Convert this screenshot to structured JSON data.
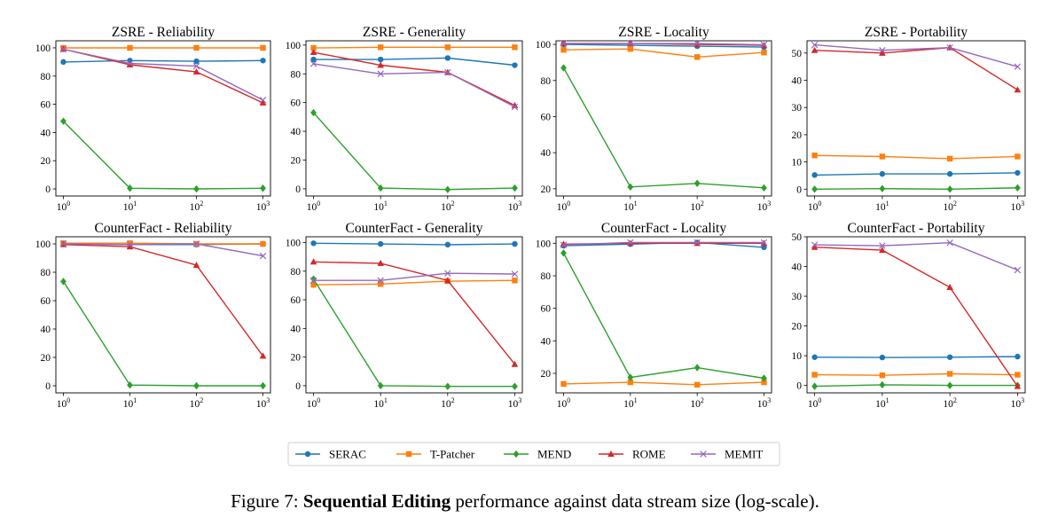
{
  "caption": {
    "prefix": "Figure 7: ",
    "bold": "Sequential Editing",
    "suffix": " performance against data stream size (log-scale)."
  },
  "legend": [
    "SERAC",
    "T-Patcher",
    "MEND",
    "ROME",
    "MEMIT"
  ],
  "series_styles": [
    {
      "name": "SERAC",
      "color": "#1f77b4",
      "marker": "circle"
    },
    {
      "name": "T-Patcher",
      "color": "#ff7f0e",
      "marker": "square"
    },
    {
      "name": "MEND",
      "color": "#2ca02c",
      "marker": "diamond"
    },
    {
      "name": "ROME",
      "color": "#d62728",
      "marker": "triangle"
    },
    {
      "name": "MEMIT",
      "color": "#9467bd",
      "marker": "x"
    }
  ],
  "chart_data": [
    {
      "type": "line",
      "title": "ZSRE - Reliability",
      "xscale": "log",
      "x": [
        1,
        10,
        100,
        1000
      ],
      "x_ticks": [
        "10^0",
        "10^1",
        "10^2",
        "10^3"
      ],
      "y_ticks": [
        0,
        20,
        40,
        60,
        80,
        100
      ],
      "ylim": [
        -5,
        105
      ],
      "series": [
        {
          "name": "SERAC",
          "values": [
            90,
            91,
            90.5,
            91
          ]
        },
        {
          "name": "T-Patcher",
          "values": [
            100,
            100,
            100,
            100
          ]
        },
        {
          "name": "MEND",
          "values": [
            48,
            0.5,
            0,
            0.5
          ]
        },
        {
          "name": "ROME",
          "values": [
            99,
            88,
            83,
            61
          ]
        },
        {
          "name": "MEMIT",
          "values": [
            99,
            89,
            87,
            63
          ]
        }
      ]
    },
    {
      "type": "line",
      "title": "ZSRE - Generality",
      "xscale": "log",
      "x": [
        1,
        10,
        100,
        1000
      ],
      "x_ticks": [
        "10^0",
        "10^1",
        "10^2",
        "10^3"
      ],
      "y_ticks": [
        0,
        20,
        40,
        60,
        80,
        100
      ],
      "ylim": [
        -5,
        103
      ],
      "series": [
        {
          "name": "SERAC",
          "values": [
            90,
            90,
            91,
            86
          ]
        },
        {
          "name": "T-Patcher",
          "values": [
            98,
            98.5,
            98.5,
            98.5
          ]
        },
        {
          "name": "MEND",
          "values": [
            53,
            0.5,
            -0.5,
            0.5
          ]
        },
        {
          "name": "ROME",
          "values": [
            95,
            86,
            81,
            58
          ]
        },
        {
          "name": "MEMIT",
          "values": [
            87,
            80,
            81,
            57
          ]
        }
      ]
    },
    {
      "type": "line",
      "title": "ZSRE - Locality",
      "xscale": "log",
      "x": [
        1,
        10,
        100,
        1000
      ],
      "x_ticks": [
        "10^0",
        "10^1",
        "10^2",
        "10^3"
      ],
      "y_ticks": [
        20,
        40,
        60,
        80,
        100
      ],
      "ylim": [
        16,
        102
      ],
      "series": [
        {
          "name": "SERAC",
          "values": [
            100,
            99.5,
            99,
            98.5
          ]
        },
        {
          "name": "T-Patcher",
          "values": [
            97,
            97.5,
            93,
            95.5
          ]
        },
        {
          "name": "MEND",
          "values": [
            87,
            21,
            23,
            20.5
          ]
        },
        {
          "name": "ROME",
          "values": [
            100.5,
            100.5,
            100,
            99.5
          ]
        },
        {
          "name": "MEMIT",
          "values": [
            100.5,
            100.5,
            100.5,
            99.8
          ]
        }
      ]
    },
    {
      "type": "line",
      "title": "ZSRE - Portability",
      "xscale": "log",
      "x": [
        1,
        10,
        100,
        1000
      ],
      "x_ticks": [
        "10^0",
        "10^1",
        "10^2",
        "10^3"
      ],
      "y_ticks": [
        0,
        10,
        20,
        30,
        40,
        50
      ],
      "ylim": [
        -2.5,
        54.5
      ],
      "series": [
        {
          "name": "SERAC",
          "values": [
            5.2,
            5.6,
            5.6,
            6
          ]
        },
        {
          "name": "T-Patcher",
          "values": [
            12.4,
            12,
            11.2,
            12
          ]
        },
        {
          "name": "MEND",
          "values": [
            0,
            0.2,
            0,
            0.5
          ]
        },
        {
          "name": "ROME",
          "values": [
            51,
            50,
            52,
            36.5
          ]
        },
        {
          "name": "MEMIT",
          "values": [
            53,
            51,
            52,
            45
          ]
        }
      ]
    },
    {
      "type": "line",
      "title": "CounterFact - Reliability",
      "xscale": "log",
      "x": [
        1,
        10,
        100,
        1000
      ],
      "x_ticks": [
        "10^0",
        "10^1",
        "10^2",
        "10^3"
      ],
      "y_ticks": [
        0,
        20,
        40,
        60,
        80,
        100
      ],
      "ylim": [
        -5,
        105
      ],
      "series": [
        {
          "name": "SERAC",
          "values": [
            100,
            99.5,
            99.5,
            100
          ]
        },
        {
          "name": "T-Patcher",
          "values": [
            100.5,
            100.5,
            100,
            100
          ]
        },
        {
          "name": "MEND",
          "values": [
            73.5,
            0.5,
            0,
            0
          ]
        },
        {
          "name": "ROME",
          "values": [
            99.5,
            98,
            85,
            21
          ]
        },
        {
          "name": "MEMIT",
          "values": [
            100,
            99.5,
            100,
            91.5
          ]
        }
      ]
    },
    {
      "type": "line",
      "title": "CounterFact - Generality",
      "xscale": "log",
      "x": [
        1,
        10,
        100,
        1000
      ],
      "x_ticks": [
        "10^0",
        "10^1",
        "10^2",
        "10^3"
      ],
      "y_ticks": [
        0,
        20,
        40,
        60,
        80,
        100
      ],
      "ylim": [
        -5,
        104
      ],
      "series": [
        {
          "name": "SERAC",
          "values": [
            99.5,
            99,
            98.5,
            99
          ]
        },
        {
          "name": "T-Patcher",
          "values": [
            70.5,
            71,
            73,
            73.5
          ]
        },
        {
          "name": "MEND",
          "values": [
            74.5,
            0,
            -0.5,
            -0.5
          ]
        },
        {
          "name": "ROME",
          "values": [
            86.5,
            85.5,
            73.5,
            15
          ]
        },
        {
          "name": "MEMIT",
          "values": [
            73.5,
            73.5,
            78.5,
            78
          ]
        }
      ]
    },
    {
      "type": "line",
      "title": "CounterFact - Locality",
      "xscale": "log",
      "x": [
        1,
        10,
        100,
        1000
      ],
      "x_ticks": [
        "10^0",
        "10^1",
        "10^2",
        "10^3"
      ],
      "y_ticks": [
        20,
        40,
        60,
        80,
        100
      ],
      "ylim": [
        8,
        104
      ],
      "series": [
        {
          "name": "SERAC",
          "values": [
            98.5,
            99.5,
            100.5,
            97.5
          ]
        },
        {
          "name": "T-Patcher",
          "values": [
            13.5,
            14.5,
            13,
            14.5
          ]
        },
        {
          "name": "MEND",
          "values": [
            94,
            17.5,
            23.5,
            17
          ]
        },
        {
          "name": "ROME",
          "values": [
            99.5,
            100,
            100,
            100
          ]
        },
        {
          "name": "MEMIT",
          "values": [
            99,
            100.5,
            100.5,
            100.5
          ]
        }
      ]
    },
    {
      "type": "line",
      "title": "CounterFact - Portability",
      "xscale": "log",
      "x": [
        1,
        10,
        100,
        1000
      ],
      "x_ticks": [
        "10^0",
        "10^1",
        "10^2",
        "10^3"
      ],
      "y_ticks": [
        0,
        10,
        20,
        30,
        40,
        50
      ],
      "ylim": [
        -2.5,
        50
      ],
      "series": [
        {
          "name": "SERAC",
          "values": [
            9.5,
            9.4,
            9.5,
            9.7
          ]
        },
        {
          "name": "T-Patcher",
          "values": [
            3.6,
            3.4,
            3.9,
            3.6
          ]
        },
        {
          "name": "MEND",
          "values": [
            -0.3,
            0.2,
            0,
            0
          ]
        },
        {
          "name": "ROME",
          "values": [
            46.5,
            45.5,
            33,
            -0.3
          ]
        },
        {
          "name": "MEMIT",
          "values": [
            47.3,
            47,
            48,
            38.8
          ]
        }
      ]
    }
  ]
}
